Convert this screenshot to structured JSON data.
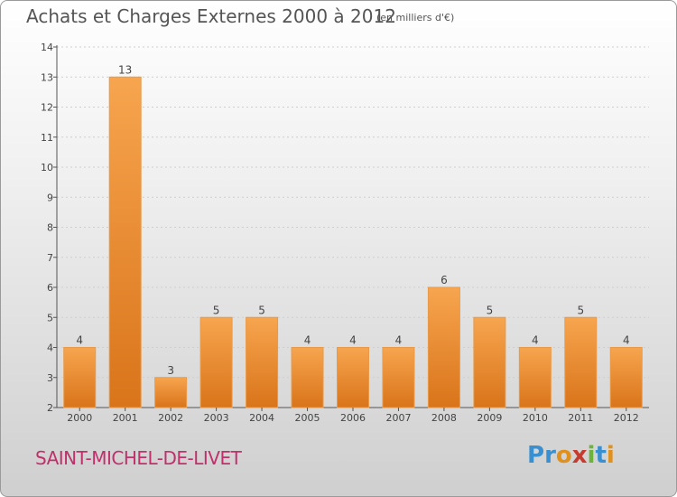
{
  "title": "Achats et Charges Externes 2000 à 2012",
  "unit_label": "(en milliers d'€)",
  "commune": "SAINT-MICHEL-DE-LIVET",
  "logo": {
    "text": "Proxiti",
    "letters": [
      "P",
      "r",
      "o",
      "x",
      "i",
      "t",
      "i"
    ],
    "colors": [
      "#3a8fd0",
      "#3a8fd0",
      "#e0901c",
      "#c63b2e",
      "#6bb33a",
      "#3a8fd0",
      "#e0901c"
    ]
  },
  "colors": {
    "bar_light": "#f7a54f",
    "bar_dark": "#d9741a",
    "title": "#555555",
    "commune": "#c0306a"
  },
  "chart_data": {
    "type": "bar",
    "categories": [
      "2000",
      "2001",
      "2002",
      "2003",
      "2004",
      "2005",
      "2006",
      "2007",
      "2008",
      "2009",
      "2010",
      "2011",
      "2012"
    ],
    "values": [
      4,
      13,
      3,
      5,
      5,
      4,
      4,
      4,
      6,
      5,
      4,
      5,
      4
    ],
    "data_labels": [
      "4",
      "13",
      "3",
      "5",
      "5",
      "4",
      "4",
      "4",
      "6",
      "5",
      "4",
      "5",
      "4"
    ],
    "ylim": [
      2,
      14
    ],
    "yticks": [
      2,
      3,
      4,
      5,
      6,
      7,
      8,
      9,
      10,
      11,
      12,
      13,
      14
    ],
    "grid": true,
    "xlabel": "",
    "ylabel": ""
  }
}
